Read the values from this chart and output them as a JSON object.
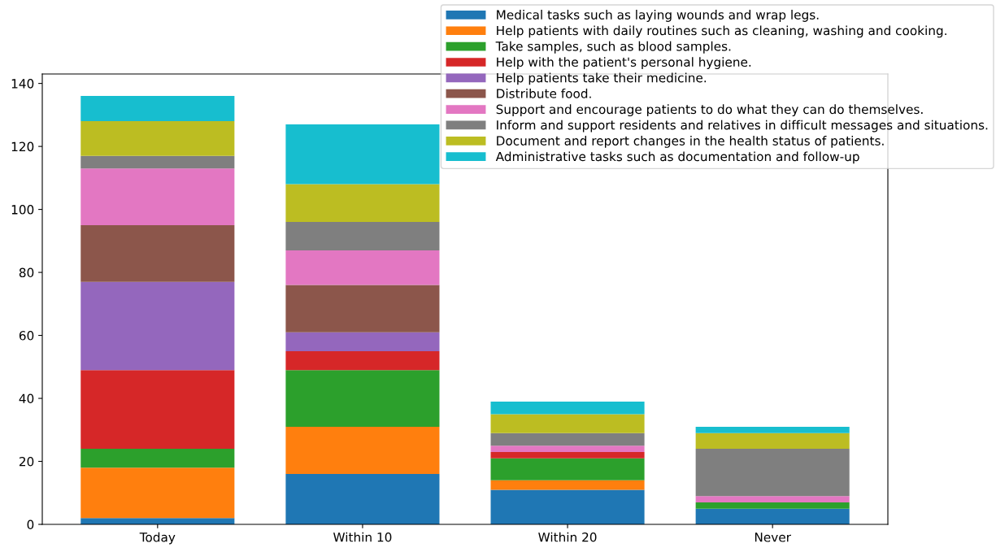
{
  "chart_data": {
    "type": "bar",
    "stacked": true,
    "categories": [
      "Today",
      "Within 10",
      "Within 20",
      "Never"
    ],
    "series": [
      {
        "name": "Medical tasks such as laying wounds and wrap legs.",
        "color": "#1f77b4",
        "values": [
          2,
          16,
          11,
          5
        ]
      },
      {
        "name": "Help patients with daily routines such as cleaning, washing and cooking.",
        "color": "#ff7f0e",
        "values": [
          16,
          15,
          3,
          0
        ]
      },
      {
        "name": "Take samples, such as blood samples.",
        "color": "#2ca02c",
        "values": [
          6,
          18,
          7,
          2
        ]
      },
      {
        "name": "Help with the patient's personal hygiene.",
        "color": "#d62728",
        "values": [
          25,
          6,
          2,
          0
        ]
      },
      {
        "name": "Help patients take their medicine.",
        "color": "#9467bd",
        "values": [
          28,
          6,
          0,
          0
        ]
      },
      {
        "name": "Distribute food.",
        "color": "#8c564b",
        "values": [
          18,
          15,
          0,
          0
        ]
      },
      {
        "name": "Support and encourage patients to do what they can do themselves.",
        "color": "#e377c2",
        "values": [
          18,
          11,
          2,
          2
        ]
      },
      {
        "name": "Inform and support residents and relatives in difficult messages and situations.",
        "color": "#7f7f7f",
        "values": [
          4,
          9,
          4,
          15
        ]
      },
      {
        "name": "Document and report changes in the health status of patients.",
        "color": "#bcbd22",
        "values": [
          11,
          12,
          6,
          5
        ]
      },
      {
        "name": "Administrative tasks such as documentation and follow-up",
        "color": "#17becf",
        "values": [
          8,
          19,
          4,
          2
        ]
      }
    ],
    "ylim": [
      0,
      143
    ],
    "yticks": [
      0,
      20,
      40,
      60,
      80,
      100,
      120,
      140
    ],
    "legend": "top right",
    "grid": false
  }
}
